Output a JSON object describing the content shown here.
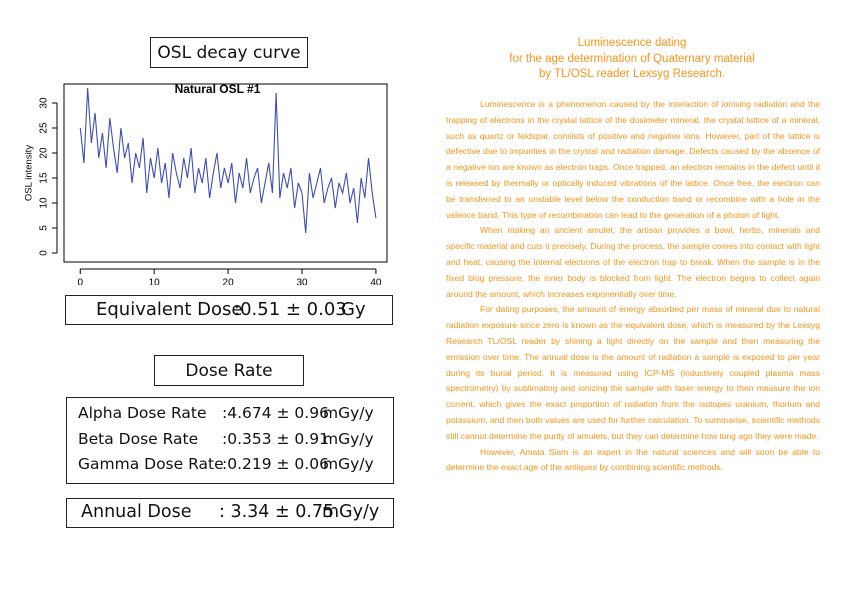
{
  "chart_data": {
    "type": "line",
    "title": "Natural OSL #1",
    "ylabel": "OSL intensity",
    "color": "#3f4fa8",
    "x": [
      0,
      0.5,
      1,
      1.5,
      2,
      2.5,
      3,
      3.5,
      4,
      4.5,
      5,
      5.5,
      6,
      6.5,
      7,
      7.5,
      8,
      8.5,
      9,
      9.5,
      10,
      10.5,
      11,
      11.5,
      12,
      12.5,
      13,
      13.5,
      14,
      14.5,
      15,
      15.5,
      16,
      16.5,
      17,
      17.5,
      18,
      18.5,
      19,
      19.5,
      20,
      20.5,
      21,
      21.5,
      22,
      22.5,
      23,
      23.5,
      24,
      24.5,
      25,
      25.5,
      26,
      26.5,
      27,
      27.5,
      28,
      28.5,
      29,
      29.5,
      30,
      30.5,
      31,
      31.5,
      32,
      32.5,
      33,
      33.5,
      34,
      34.5,
      35,
      35.5,
      36,
      36.5,
      37,
      37.5,
      38,
      38.5,
      39,
      39.5,
      40
    ],
    "values": [
      25,
      18,
      33,
      22,
      28,
      19,
      24,
      17,
      27,
      21,
      16,
      25,
      19,
      22,
      14,
      20,
      17,
      23,
      12,
      19,
      15,
      21,
      14,
      18,
      11,
      20,
      16,
      13,
      19,
      15,
      21,
      12,
      17,
      14,
      19,
      11,
      16,
      20,
      13,
      17,
      14,
      18,
      10,
      16,
      13,
      19,
      12,
      15,
      17,
      10,
      14,
      18,
      12,
      32,
      11,
      16,
      13,
      17,
      9,
      14,
      12,
      4,
      16,
      11,
      14,
      17,
      10,
      13,
      15,
      9,
      14,
      12,
      16,
      10,
      13,
      6,
      15,
      11,
      19,
      12,
      7
    ],
    "xlim": [
      -2.2,
      41.5
    ],
    "ylim": [
      -1.8,
      33.8
    ],
    "xticks": [
      0,
      10,
      20,
      30,
      40
    ],
    "yticks": [
      0,
      5,
      10,
      15,
      20,
      25,
      30
    ]
  },
  "header": {
    "title": "OSL decay curve"
  },
  "equivalent_dose": {
    "label": "Equivalent Dose",
    "value": ":0.51 ± 0.03",
    "unit": "Gy"
  },
  "dose_rate": {
    "title": "Dose Rate",
    "rows": [
      {
        "label": "Alpha Dose Rate",
        "value": ":4.674 ± 0.96",
        "unit": "mGy/y"
      },
      {
        "label": "Beta Dose Rate",
        "value": ":0.353 ± 0.91",
        "unit": "mGy/y"
      },
      {
        "label": "Gamma Dose Rate",
        "value": ":0.219 ± 0.06",
        "unit": "mGy/y"
      }
    ]
  },
  "annual_dose": {
    "label": "Annual Dose",
    "value": ": 3.34 ± 0.75",
    "unit": "mGy/y"
  },
  "article": {
    "title": [
      "Luminescence dating",
      "for the age determination of Quaternary material",
      "by TL/OSL reader Lexsyg Research."
    ],
    "paragraphs": [
      "Luminescence is a phenomenon caused by the interaction of ionising radiation and the trapping of electrons in the crystal lattice of the dosimeter mineral. the crystal lattice of a mineral, such as quartz or feldspar, consists of positive and negative ions. However, part of the lattice is defective due to impurities in the crystal and radiation damage. Defects caused by the absence of a negative ion are known as electron traps. Once trapped, an electron remains in the defect until it is released by thermally or optically induced vibrations of the lattice. Once free, the electron can be transferred to an unstable level below the conduction band or recombine with a hole in the valence band. This type of recombination can lead to the generation of a photon of light.",
      "When making an ancient amulet, the artisan provides a bowl, herbs, minerals and specific material and cuts it precisely. During the process, the sample comes into contact with light and heat, causing the internal electrons of the electron trap to break. When the sample is in the fixed blog pressure, the inner body is blocked from light. The electron begins to collect again around the amount, which increases exponentially over time.",
      "For dating purposes, the amount of energy absorbed per mass of mineral due to natural radiation exposure since zero is known as the equivalent dose, which is measured by the Lexsyg Research TL/OSL reader by shining a light directly on the sample and then measuring the emission over time. The annual dose is the amount of radiation a sample is exposed to per year during its burial period. It is measured using ICP-MS (inductively coupled plasma mass spectrometry) by sublimating and ionizing the sample with laser energy to then measure the ion current, which gives the exact proportion of radiation from the isotopes uranium, thorium and potassium, and then both values are used for further calculation. To summarise, scientific methods still cannot determine the purity of amulets, but they can determine how long ago they were made.",
      "However, Amata Siam is an expert in the natural sciences and will soon be able to determine the exact age of the antiques by combining scientific methods."
    ]
  }
}
